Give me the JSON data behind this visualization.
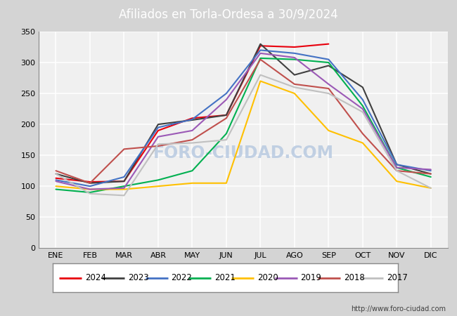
{
  "title": "Afiliados en Torla-Ordesa a 30/9/2024",
  "title_bg_color": "#5b9bd5",
  "title_text_color": "white",
  "title_fontsize": 12,
  "ylim": [
    0,
    350
  ],
  "yticks": [
    0,
    50,
    100,
    150,
    200,
    250,
    300,
    350
  ],
  "months": [
    "ENE",
    "FEB",
    "MAR",
    "ABR",
    "MAY",
    "JUN",
    "JUL",
    "AGO",
    "SEP",
    "OCT",
    "NOV",
    "DIC"
  ],
  "watermark": "FORO-CIUDAD.COM",
  "url": "http://www.foro-ciudad.com",
  "series": {
    "2024": {
      "color": "#e8000d",
      "data": [
        113,
        107,
        108,
        190,
        210,
        215,
        327,
        325,
        330,
        null,
        null,
        null
      ]
    },
    "2023": {
      "color": "#404040",
      "data": [
        120,
        105,
        108,
        200,
        207,
        215,
        330,
        280,
        295,
        260,
        135,
        120
      ]
    },
    "2022": {
      "color": "#4472c4",
      "data": [
        110,
        100,
        115,
        195,
        208,
        250,
        320,
        315,
        305,
        240,
        135,
        125
      ]
    },
    "2021": {
      "color": "#00b050",
      "data": [
        95,
        90,
        100,
        110,
        125,
        185,
        307,
        305,
        300,
        230,
        130,
        115
      ]
    },
    "2020": {
      "color": "#ffc000",
      "data": [
        100,
        95,
        95,
        100,
        105,
        105,
        270,
        250,
        190,
        170,
        108,
        97
      ]
    },
    "2019": {
      "color": "#9b59b6",
      "data": [
        108,
        95,
        97,
        180,
        190,
        240,
        315,
        308,
        265,
        225,
        130,
        127
      ]
    },
    "2018": {
      "color": "#c0504d",
      "data": [
        125,
        105,
        160,
        165,
        175,
        210,
        305,
        265,
        258,
        185,
        125,
        120
      ]
    },
    "2017": {
      "color": "#c0c0c0",
      "data": [
        120,
        88,
        85,
        168,
        170,
        175,
        280,
        260,
        250,
        220,
        125,
        97
      ]
    }
  },
  "legend_order": [
    "2024",
    "2023",
    "2022",
    "2021",
    "2020",
    "2019",
    "2018",
    "2017"
  ],
  "fig_bg_color": "#d4d4d4",
  "plot_bg_color": "#e8e8e8",
  "plot_inner_bg": "#f0f0f0",
  "grid_color": "white",
  "tick_fontsize": 8,
  "legend_fontsize": 8.5,
  "line_width": 1.5
}
